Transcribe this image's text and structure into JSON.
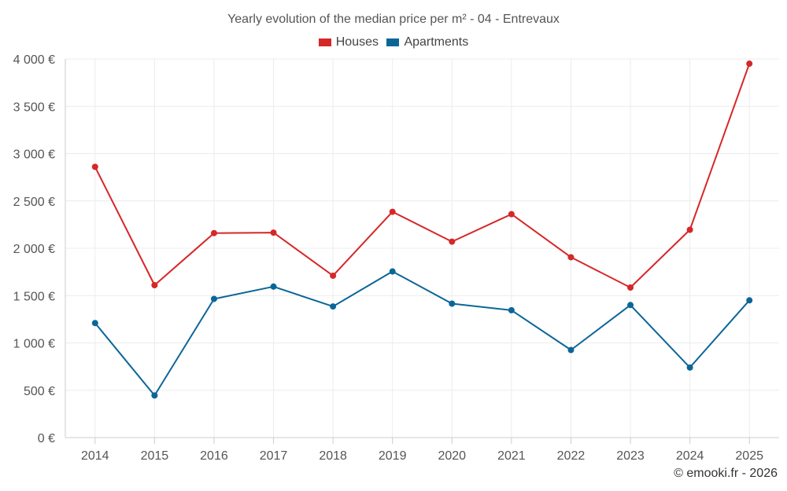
{
  "chart_data": {
    "type": "line",
    "title": "Yearly evolution of the median price per m² - 04 - Entrevaux",
    "categories": [
      "2014",
      "2015",
      "2016",
      "2017",
      "2018",
      "2019",
      "2020",
      "2021",
      "2022",
      "2023",
      "2024",
      "2025"
    ],
    "series": [
      {
        "name": "Houses",
        "color": "#d62728",
        "values": [
          2860,
          1610,
          2160,
          2165,
          1710,
          2385,
          2070,
          2360,
          1905,
          1585,
          2195,
          3950
        ]
      },
      {
        "name": "Apartments",
        "color": "#0b6698",
        "values": [
          1210,
          445,
          1465,
          1595,
          1385,
          1755,
          1415,
          1345,
          925,
          1400,
          740,
          1450
        ]
      }
    ],
    "ylim": [
      0,
      4000
    ],
    "yticks": [
      0,
      500,
      1000,
      1500,
      2000,
      2500,
      3000,
      3500,
      4000
    ],
    "ytick_labels": [
      "0 €",
      "500 €",
      "1 000 €",
      "1 500 €",
      "2 000 €",
      "2 500 €",
      "3 000 €",
      "3 500 €",
      "4 000 €"
    ],
    "legend_position": "top-center",
    "grid": true
  },
  "footer": {
    "credit": "© emooki.fr - 2026"
  }
}
